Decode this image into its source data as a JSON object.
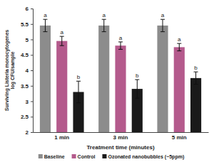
{
  "chart_data": {
    "type": "bar",
    "x_label": "Treatment time (minutes)",
    "y_label": [
      "Surviving Listeria monocytogenes",
      "log CFU/sample"
    ],
    "categories": [
      "1 min",
      "3 min",
      "5 min"
    ],
    "series": [
      {
        "name": "Baseline",
        "color": "#8c8c8c",
        "values": [
          5.45,
          5.45,
          5.45
        ],
        "errors": [
          0.2,
          0.2,
          0.2
        ],
        "annotations": [
          "a",
          "a",
          "a"
        ]
      },
      {
        "name": "Control",
        "color": "#b45a8c",
        "values": [
          4.95,
          4.8,
          4.75
        ],
        "errors": [
          0.15,
          0.12,
          0.12
        ],
        "annotations": [
          "a",
          "a",
          "a"
        ]
      },
      {
        "name": "Ozonated nanobubbles (~5ppm)",
        "color": "#1a1a1a",
        "values": [
          3.3,
          3.4,
          3.75
        ],
        "errors": [
          0.35,
          0.3,
          0.2
        ],
        "annotations": [
          "b",
          "b",
          "b"
        ]
      }
    ],
    "ylim": [
      2,
      6
    ],
    "yticks": [
      2,
      2.5,
      3,
      3.5,
      4,
      4.5,
      5,
      5.5,
      6
    ],
    "legend": "bottom"
  }
}
